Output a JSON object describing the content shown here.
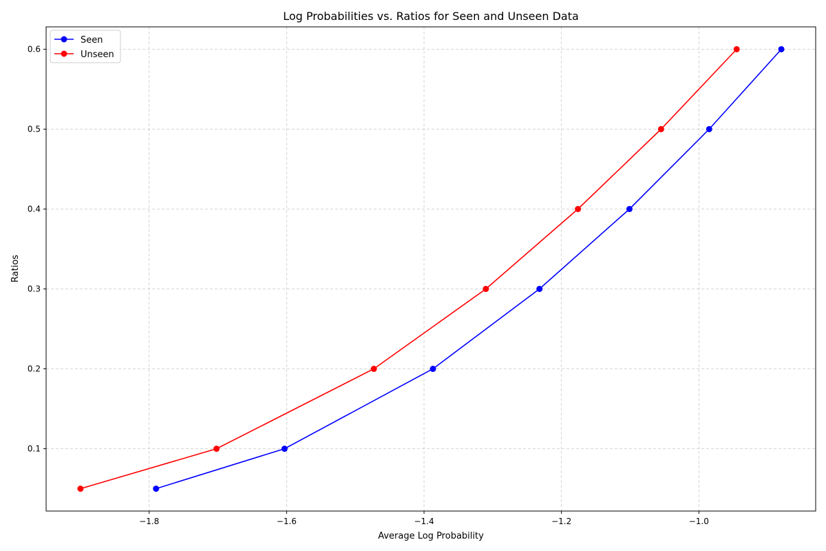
{
  "chart_data": {
    "type": "line",
    "title": "Log Probabilities vs. Ratios for Seen and Unseen Data",
    "xlabel": "Average Log Probability",
    "ylabel": "Ratios",
    "xlim": [
      -1.95,
      -0.83
    ],
    "ylim": [
      0.022,
      0.628
    ],
    "grid": true,
    "legend_position": "top-left",
    "x_ticks": [
      -1.8,
      -1.6,
      -1.4,
      -1.2,
      -1.0
    ],
    "x_tick_labels": [
      "−1.8",
      "−1.6",
      "−1.4",
      "−1.2",
      "−1.0"
    ],
    "y_ticks": [
      0.1,
      0.2,
      0.3,
      0.4,
      0.5,
      0.6
    ],
    "y_tick_labels": [
      "0.1",
      "0.2",
      "0.3",
      "0.4",
      "0.5",
      "0.6"
    ],
    "series": [
      {
        "name": "Seen",
        "color": "#0000ff",
        "x": [
          -1.79,
          -1.603,
          -1.387,
          -1.232,
          -1.101,
          -0.985,
          -0.88
        ],
        "y": [
          0.05,
          0.1,
          0.2,
          0.3,
          0.4,
          0.5,
          0.6
        ]
      },
      {
        "name": "Unseen",
        "color": "#ff0000",
        "x": [
          -1.9,
          -1.702,
          -1.473,
          -1.31,
          -1.176,
          -1.055,
          -0.945
        ],
        "y": [
          0.05,
          0.1,
          0.2,
          0.3,
          0.4,
          0.5,
          0.6
        ]
      }
    ]
  }
}
